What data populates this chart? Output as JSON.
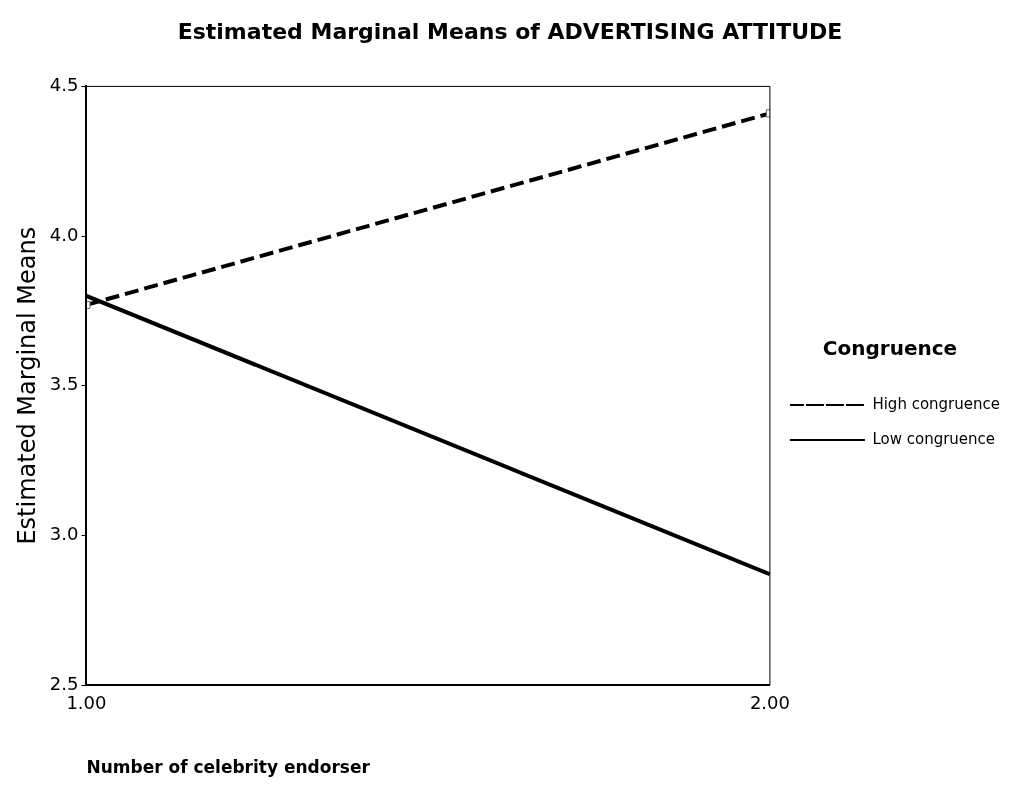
{
  "chart_data": {
    "type": "line",
    "title": "Estimated Marginal Means of ADVERTISING ATTITUDE",
    "xlabel": "Number of celebrity endorser",
    "ylabel": "Estimated Marginal Means",
    "legend_title": "Congruence",
    "x": [
      1,
      2
    ],
    "series": [
      {
        "name": "High congruence",
        "color": "#000000",
        "values": [
          3.77,
          4.41
        ],
        "line_style": "dashed",
        "marker": "square"
      },
      {
        "name": "Low congruence",
        "color": "#000000",
        "values": [
          3.8,
          2.87
        ],
        "line_style": "solid",
        "marker": "none"
      }
    ],
    "xlim": [
      1,
      2
    ],
    "xticks": [
      {
        "value": 1,
        "label": "1.00"
      },
      {
        "value": 2,
        "label": "2.00"
      }
    ],
    "ylim": [
      2.5,
      4.5
    ],
    "yticks": [
      2.5,
      {
        "value": 3,
        "label": "3.0"
      },
      3.5,
      {
        "value": 4,
        "label": "4.0"
      },
      4.5
    ],
    "grid": false,
    "legend": "right"
  }
}
